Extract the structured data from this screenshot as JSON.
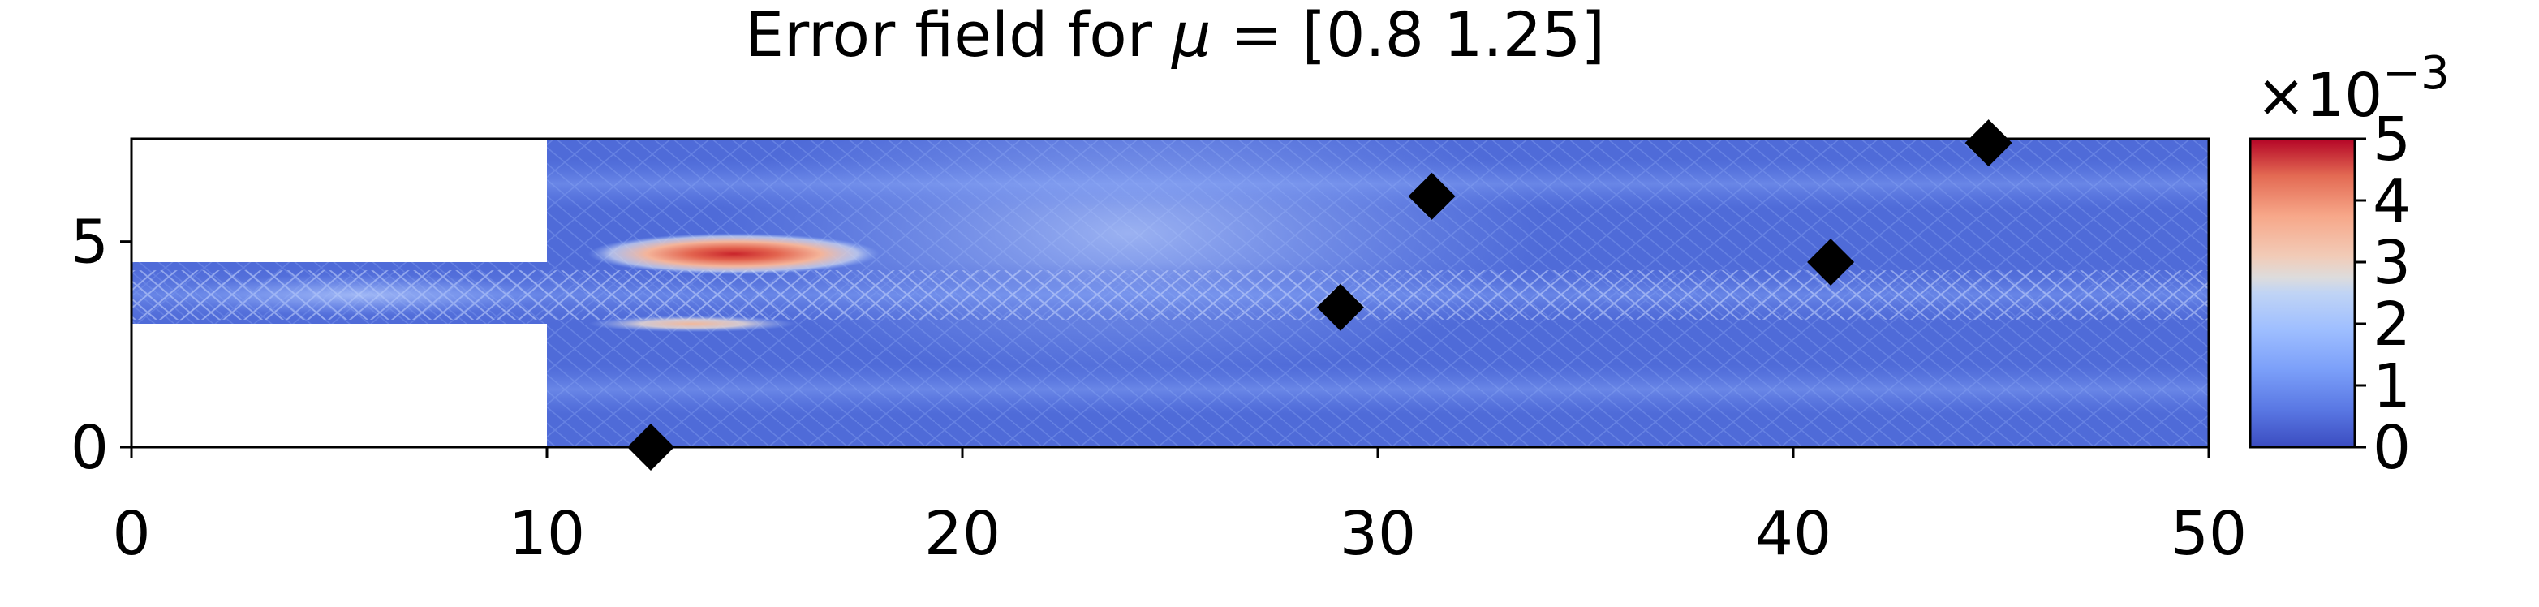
{
  "chart_data": {
    "type": "heatmap",
    "title": "Error field for μ = [0.8  1.25]",
    "title_parts": {
      "prefix": "Error field for ",
      "symbol": "μ",
      "suffix": " = [0.8  1.25]"
    },
    "xlim": [
      0,
      50
    ],
    "ylim": [
      0,
      7.5
    ],
    "x_ticks": [
      0,
      10,
      20,
      30,
      40,
      50
    ],
    "y_ticks": [
      0,
      5
    ],
    "x_tick_labels": [
      "0",
      "10",
      "20",
      "30",
      "40",
      "50"
    ],
    "y_tick_labels": [
      "0",
      "5"
    ],
    "colormap": "coolwarm",
    "colors": {
      "low": "#3b4cc0",
      "mid": "#dddddd",
      "high": "#b40426",
      "marker": "#000000"
    },
    "colorbar": {
      "range": [
        0,
        5
      ],
      "ticks": [
        0,
        1,
        2,
        3,
        4,
        5
      ],
      "tick_labels": [
        "0",
        "1",
        "2",
        "3",
        "4",
        "5"
      ],
      "multiplier_base": "×10",
      "multiplier_exponent": "−3"
    },
    "domain": {
      "inlet_channel": {
        "x": [
          0,
          10
        ],
        "y": [
          3,
          4.5
        ]
      },
      "main_channel": {
        "x": [
          10,
          50
        ],
        "y": [
          0,
          7.5
        ]
      }
    },
    "hotspots": [
      {
        "x": [
          11,
          18
        ],
        "y": [
          4.2,
          5.2
        ],
        "peak": 5
      },
      {
        "x": [
          11,
          16
        ],
        "y": [
          2.8,
          3.2
        ],
        "peak": 3
      },
      {
        "x": [
          1,
          10
        ],
        "y": [
          3.2,
          4.2
        ],
        "peak": 2
      }
    ],
    "markers": [
      {
        "x": 12.5,
        "y": 0.0
      },
      {
        "x": 29.1,
        "y": 3.4
      },
      {
        "x": 31.3,
        "y": 6.1
      },
      {
        "x": 40.9,
        "y": 4.5
      },
      {
        "x": 44.7,
        "y": 7.4
      }
    ]
  }
}
